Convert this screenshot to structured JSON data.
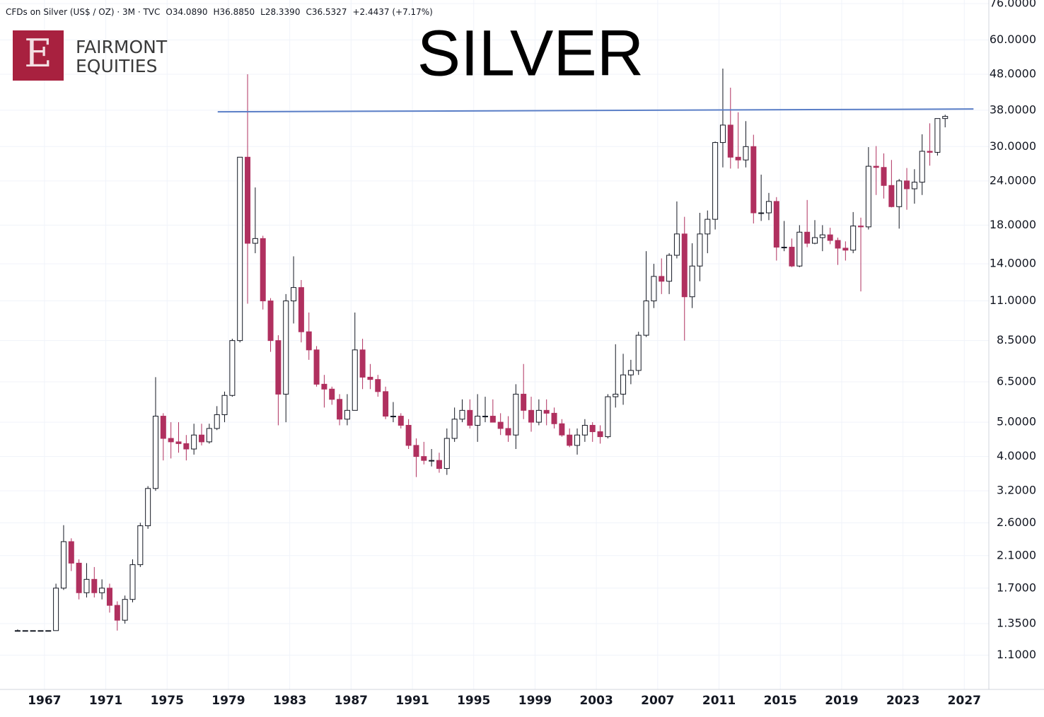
{
  "header": {
    "symbol": "CFDs on Silver (US$ / OZ) · 3M · TVC",
    "open": "O34.0890",
    "high": "H36.8850",
    "low": "L28.3390",
    "close": "C36.5327",
    "change": "+2.4437 (+7.17%)"
  },
  "logo": {
    "letter": "E",
    "line1": "FAIRMONT",
    "line2": "EQUITIES"
  },
  "chart_data": {
    "type": "candlestick",
    "title": "SILVER",
    "x": [
      1965.25,
      1965.75,
      1966.25,
      1966.75,
      1967.25,
      1967.75,
      1968.25,
      1968.75,
      1969.25,
      1969.75,
      1970.25,
      1970.75,
      1971.25,
      1971.75,
      1972.25,
      1972.75,
      1973.25,
      1973.75,
      1974.25,
      1974.75,
      1975.25,
      1975.75,
      1976.25,
      1976.75,
      1977.25,
      1977.75,
      1978.25,
      1978.75,
      1979.25,
      1979.75,
      1980.25,
      1980.75,
      1981.25,
      1981.75,
      1982.25,
      1982.75,
      1983.25,
      1983.75,
      1984.25,
      1984.75,
      1985.25,
      1985.75,
      1986.25,
      1986.75,
      1987.25,
      1987.75,
      1988.25,
      1988.75,
      1989.25,
      1989.75,
      1990.25,
      1990.75,
      1991.25,
      1991.75,
      1992.25,
      1992.75,
      1993.25,
      1993.75,
      1994.25,
      1994.75,
      1995.25,
      1995.75,
      1996.25,
      1996.75,
      1997.25,
      1997.75,
      1998.25,
      1998.75,
      1999.25,
      1999.75,
      2000.25,
      2000.75,
      2001.25,
      2001.75,
      2002.25,
      2002.75,
      2003.25,
      2003.75,
      2004.25,
      2004.75,
      2005.25,
      2005.75,
      2006.25,
      2006.75,
      2007.25,
      2007.75,
      2008.25,
      2008.75,
      2009.25,
      2009.75,
      2010.25,
      2010.75,
      2011.25,
      2011.75,
      2012.25,
      2012.75,
      2013.25,
      2013.75,
      2014.25,
      2014.75,
      2015.25,
      2015.75,
      2016.25,
      2016.75,
      2017.25,
      2017.75,
      2018.25,
      2018.75,
      2019.25,
      2019.75,
      2020.25,
      2020.75,
      2021.25,
      2021.75,
      2022.25,
      2022.75,
      2023.25,
      2023.75,
      2024.25,
      2024.75,
      2025.25,
      2025.75
    ],
    "open": [
      1.29,
      1.29,
      1.29,
      1.29,
      1.29,
      1.29,
      1.7,
      2.3,
      2.0,
      1.65,
      1.8,
      1.65,
      1.7,
      1.52,
      1.38,
      1.58,
      1.98,
      2.55,
      3.25,
      5.2,
      4.5,
      4.4,
      4.35,
      4.2,
      4.6,
      4.4,
      4.8,
      5.25,
      5.95,
      8.5,
      28.0,
      16.0,
      16.5,
      11.0,
      8.5,
      6.0,
      11.0,
      12.0,
      9.0,
      8.0,
      6.4,
      6.2,
      5.8,
      5.1,
      5.4,
      8.0,
      6.7,
      6.6,
      6.1,
      5.2,
      5.2,
      4.9,
      4.3,
      4.0,
      3.9,
      3.9,
      3.7,
      4.5,
      5.1,
      5.4,
      4.9,
      5.2,
      5.2,
      5.0,
      4.8,
      4.6,
      6.0,
      5.4,
      5.0,
      5.4,
      5.3,
      4.95,
      4.6,
      4.3,
      4.6,
      4.9,
      4.7,
      4.55,
      5.9,
      6.0,
      6.8,
      7.0,
      8.8,
      11.0,
      12.9,
      12.5,
      14.8,
      17.0,
      11.3,
      13.8,
      17.0,
      18.7,
      30.8,
      34.5,
      28.0,
      27.5,
      30.0,
      19.5,
      19.5,
      21.0,
      15.6,
      15.6,
      13.8,
      17.2,
      16.0,
      16.6,
      16.9,
      16.3,
      15.5,
      15.3,
      17.9,
      17.8,
      26.4,
      26.2,
      23.3,
      20.3,
      24.0,
      22.8,
      23.8,
      29.1,
      28.9,
      36.0
    ],
    "high": [
      1.3,
      1.29,
      1.29,
      1.29,
      1.29,
      1.75,
      2.56,
      2.35,
      2.05,
      2.0,
      1.95,
      1.8,
      1.75,
      1.56,
      1.62,
      2.05,
      2.6,
      3.3,
      6.7,
      5.3,
      5.0,
      5.0,
      4.6,
      4.95,
      4.95,
      4.95,
      5.55,
      6.1,
      8.6,
      28.0,
      48.0,
      23.0,
      16.8,
      11.2,
      8.8,
      11.5,
      14.7,
      12.6,
      10.2,
      8.2,
      6.8,
      6.3,
      6.0,
      6.0,
      10.2,
      8.6,
      7.3,
      6.8,
      6.3,
      5.7,
      5.3,
      5.1,
      4.5,
      4.4,
      4.2,
      4.1,
      4.8,
      5.5,
      5.8,
      5.8,
      6.0,
      5.9,
      5.8,
      5.3,
      5.2,
      6.4,
      7.3,
      5.9,
      5.8,
      5.8,
      5.5,
      5.1,
      4.8,
      4.8,
      5.1,
      5.0,
      4.9,
      6.0,
      8.3,
      7.8,
      7.5,
      9.0,
      15.2,
      14.0,
      14.5,
      15.0,
      21.0,
      19.0,
      16.0,
      19.5,
      19.8,
      31.0,
      49.8,
      44.0,
      37.5,
      35.4,
      32.4,
      25.0,
      22.2,
      21.6,
      18.5,
      16.5,
      18.0,
      21.2,
      18.6,
      18.0,
      17.7,
      16.6,
      16.2,
      19.6,
      18.9,
      29.9,
      30.1,
      28.7,
      27.5,
      24.3,
      26.1,
      25.9,
      32.5,
      34.9,
      36.0,
      36.9
    ],
    "low": [
      1.29,
      1.29,
      1.29,
      1.29,
      1.29,
      1.29,
      1.68,
      1.9,
      1.58,
      1.6,
      1.6,
      1.58,
      1.45,
      1.29,
      1.35,
      1.55,
      1.95,
      2.5,
      3.2,
      3.9,
      3.95,
      4.1,
      3.9,
      4.05,
      4.3,
      4.35,
      4.75,
      5.0,
      5.9,
      8.4,
      10.8,
      15.0,
      10.4,
      7.9,
      4.9,
      5.0,
      9.5,
      8.4,
      7.5,
      6.3,
      5.5,
      5.6,
      4.9,
      4.9,
      5.4,
      6.2,
      6.2,
      5.9,
      5.1,
      5.0,
      4.8,
      4.2,
      3.5,
      3.8,
      3.75,
      3.6,
      3.55,
      4.4,
      5.0,
      4.8,
      4.4,
      5.0,
      5.0,
      4.6,
      4.4,
      4.2,
      5.1,
      4.7,
      4.9,
      4.9,
      4.8,
      4.55,
      4.25,
      4.05,
      4.4,
      4.4,
      4.35,
      4.5,
      5.5,
      5.6,
      6.4,
      6.8,
      8.7,
      10.5,
      11.5,
      11.5,
      14.5,
      8.5,
      10.5,
      12.5,
      15.0,
      17.5,
      26.2,
      26.0,
      26.0,
      26.2,
      18.2,
      18.5,
      18.6,
      14.3,
      15.2,
      13.7,
      13.7,
      15.6,
      15.9,
      15.2,
      15.9,
      13.9,
      14.3,
      15.0,
      11.7,
      17.5,
      21.9,
      21.4,
      20.2,
      17.6,
      19.9,
      20.7,
      21.9,
      26.5,
      28.3,
      34.0
    ],
    "close": [
      1.29,
      1.29,
      1.29,
      1.29,
      1.29,
      1.7,
      2.3,
      2.0,
      1.65,
      1.8,
      1.65,
      1.7,
      1.52,
      1.38,
      1.58,
      1.98,
      2.55,
      3.25,
      5.2,
      4.5,
      4.4,
      4.35,
      4.2,
      4.6,
      4.4,
      4.8,
      5.25,
      5.95,
      8.5,
      28.0,
      16.0,
      16.5,
      11.0,
      8.5,
      6.0,
      11.0,
      12.0,
      9.0,
      8.0,
      6.4,
      6.2,
      5.8,
      5.1,
      5.4,
      8.0,
      6.7,
      6.6,
      6.1,
      5.2,
      5.2,
      4.9,
      4.3,
      4.0,
      3.9,
      3.9,
      3.7,
      4.5,
      5.1,
      5.4,
      4.9,
      5.2,
      5.2,
      5.0,
      4.8,
      4.6,
      6.0,
      5.4,
      5.0,
      5.4,
      5.3,
      4.95,
      4.6,
      4.3,
      4.6,
      4.9,
      4.7,
      4.55,
      5.9,
      6.0,
      6.8,
      7.0,
      8.8,
      11.0,
      12.9,
      12.5,
      14.8,
      17.0,
      11.3,
      13.8,
      17.0,
      18.7,
      30.8,
      34.5,
      28.0,
      27.5,
      30.0,
      19.5,
      19.5,
      21.0,
      15.6,
      15.6,
      13.8,
      17.2,
      16.0,
      16.6,
      16.9,
      16.3,
      15.5,
      15.3,
      17.9,
      17.8,
      26.4,
      26.2,
      23.3,
      20.3,
      24.0,
      22.8,
      23.8,
      29.1,
      28.9,
      36.0,
      36.5
    ],
    "up_color": "#ffffff",
    "up_edge": "#131722",
    "down_color": "#b0305f",
    "resistance": {
      "x": [
        1978.3,
        2027.6
      ],
      "y": [
        37.6,
        38.3
      ],
      "color": "#5b7fc7"
    },
    "log_scale": true,
    "grid": true,
    "xlim": [
      1964.1,
      2028.6
    ],
    "ylim": [
      0.88,
      77.8
    ],
    "xticks": [
      1967,
      1971,
      1975,
      1979,
      1983,
      1987,
      1991,
      1995,
      1999,
      2003,
      2007,
      2011,
      2015,
      2019,
      2023,
      2027
    ],
    "yticks": [
      {
        "value": 1.1,
        "label": "1.1000"
      },
      {
        "value": 1.35,
        "label": "1.3500"
      },
      {
        "value": 1.7,
        "label": "1.7000"
      },
      {
        "value": 2.1,
        "label": "2.1000"
      },
      {
        "value": 2.6,
        "label": "2.6000"
      },
      {
        "value": 3.2,
        "label": "3.2000"
      },
      {
        "value": 4,
        "label": "4.0000"
      },
      {
        "value": 5,
        "label": "5.0000"
      },
      {
        "value": 6.5,
        "label": "6.5000"
      },
      {
        "value": 8.5,
        "label": "8.5000"
      },
      {
        "value": 11,
        "label": "11.0000"
      },
      {
        "value": 14,
        "label": "14.0000"
      },
      {
        "value": 18,
        "label": "18.0000"
      },
      {
        "value": 24,
        "label": "24.0000"
      },
      {
        "value": 30,
        "label": "30.0000"
      },
      {
        "value": 38,
        "label": "38.0000"
      },
      {
        "value": 48,
        "label": "48.0000"
      },
      {
        "value": 60,
        "label": "60.0000"
      },
      {
        "value": 76,
        "label": "76.0000"
      }
    ]
  }
}
